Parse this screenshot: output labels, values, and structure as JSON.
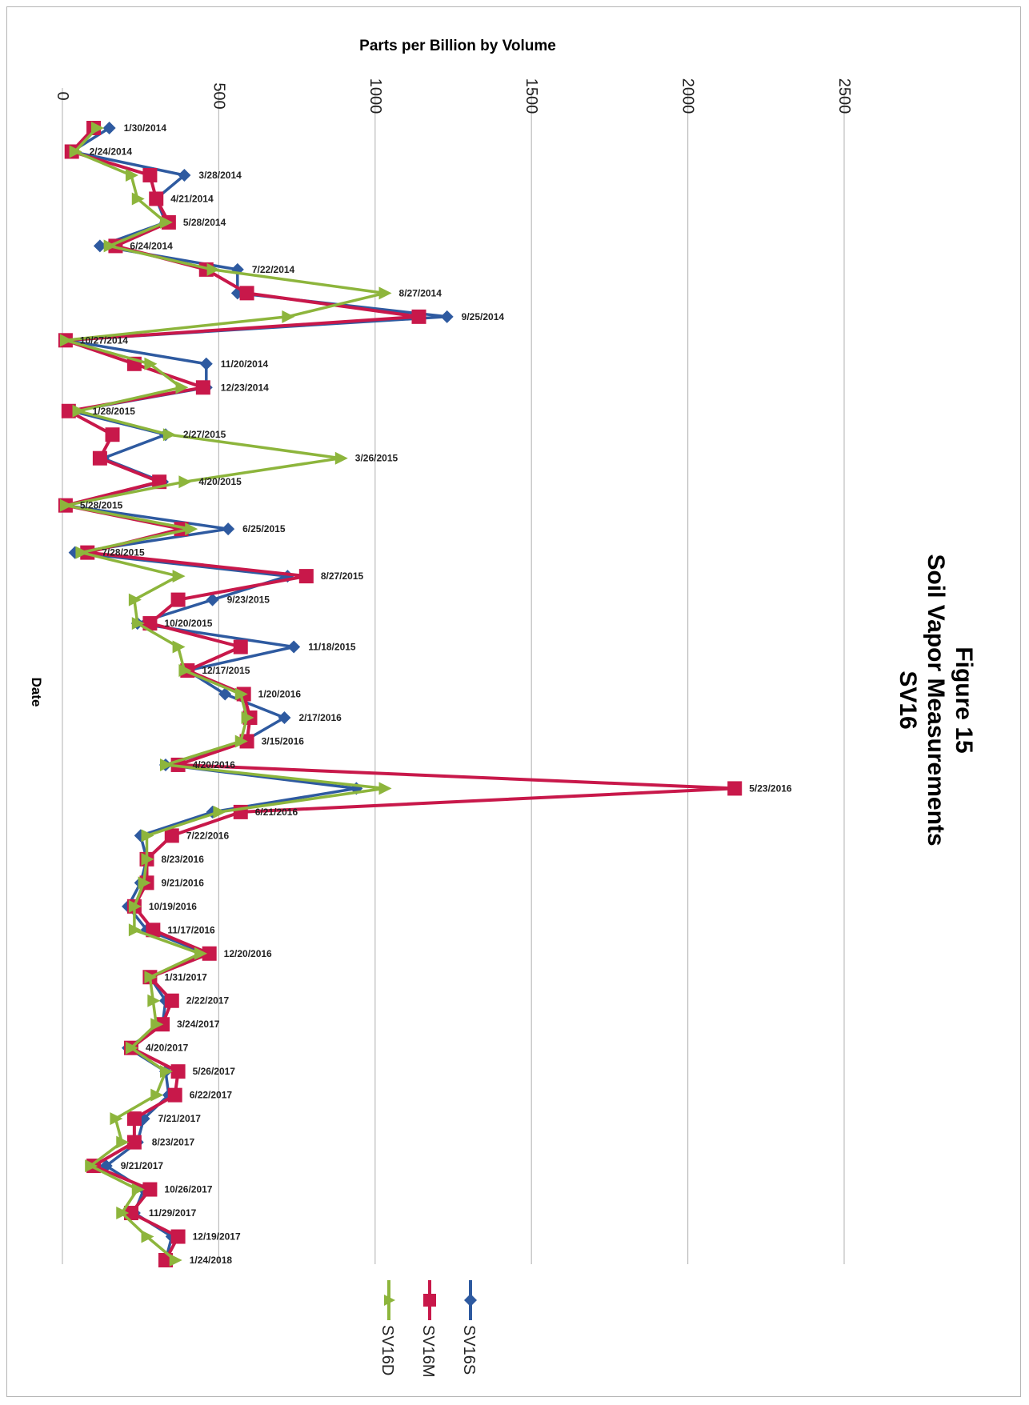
{
  "chart_data": {
    "type": "line",
    "title": "Figure 15",
    "subtitle": [
      "Soil Vapor Measurements",
      "SV16"
    ],
    "xlabel": "Date",
    "ylabel": "Parts per Billion by Volume",
    "ylim": [
      0,
      2500
    ],
    "yticks": [
      0,
      500,
      1000,
      1500,
      2000,
      2500
    ],
    "grid": true,
    "orientation": "rotated 90 degrees clockwise",
    "legend_position": "bottom",
    "categories": [
      "1/30/2014",
      "2/24/2014",
      "3/28/2014",
      "4/21/2014",
      "5/28/2014",
      "6/24/2014",
      "7/22/2014",
      "8/27/2014",
      "9/25/2014",
      "10/27/2014",
      "11/20/2014",
      "12/23/2014",
      "1/28/2015",
      "2/27/2015",
      "3/26/2015",
      "4/20/2015",
      "5/28/2015",
      "6/25/2015",
      "7/28/2015",
      "8/27/2015",
      "9/23/2015",
      "10/20/2015",
      "11/18/2015",
      "12/17/2015",
      "1/20/2016",
      "2/17/2016",
      "3/15/2016",
      "4/20/2016",
      "5/23/2016",
      "6/21/2016",
      "7/22/2016",
      "8/23/2016",
      "9/21/2016",
      "10/19/2016",
      "11/17/2016",
      "12/20/2016",
      "1/31/2017",
      "2/22/2017",
      "3/24/2017",
      "4/20/2017",
      "5/26/2017",
      "6/22/2017",
      "7/21/2017",
      "8/23/2017",
      "9/21/2017",
      "10/26/2017",
      "11/29/2017",
      "12/19/2017",
      "1/24/2018"
    ],
    "series": [
      {
        "name": "SV16S",
        "color": "#2e5aa0",
        "marker": "diamond",
        "values": [
          150,
          30,
          390,
          300,
          330,
          120,
          560,
          560,
          1230,
          10,
          460,
          460,
          30,
          330,
          130,
          320,
          10,
          530,
          40,
          720,
          480,
          240,
          740,
          400,
          520,
          710,
          580,
          330,
          940,
          480,
          250,
          270,
          250,
          210,
          270,
          460,
          280,
          330,
          320,
          210,
          330,
          340,
          260,
          240,
          140,
          260,
          230,
          350,
          330
        ]
      },
      {
        "name": "SV16M",
        "color": "#c8184a",
        "marker": "square",
        "values": [
          100,
          30,
          280,
          300,
          340,
          170,
          460,
          590,
          1140,
          10,
          230,
          450,
          20,
          160,
          120,
          310,
          10,
          380,
          80,
          780,
          370,
          280,
          570,
          400,
          580,
          600,
          590,
          370,
          2150,
          570,
          350,
          270,
          270,
          230,
          290,
          470,
          280,
          350,
          320,
          220,
          370,
          360,
          230,
          230,
          100,
          280,
          220,
          370,
          330
        ]
      },
      {
        "name": "SV16D",
        "color": "#8db53c",
        "marker": "triangle",
        "values": [
          110,
          40,
          220,
          240,
          330,
          150,
          480,
          1030,
          720,
          10,
          280,
          380,
          50,
          340,
          890,
          390,
          10,
          410,
          60,
          370,
          230,
          240,
          370,
          390,
          570,
          590,
          570,
          330,
          1030,
          500,
          270,
          270,
          260,
          230,
          230,
          440,
          280,
          290,
          300,
          220,
          330,
          300,
          170,
          190,
          90,
          240,
          190,
          270,
          360
        ]
      }
    ]
  }
}
